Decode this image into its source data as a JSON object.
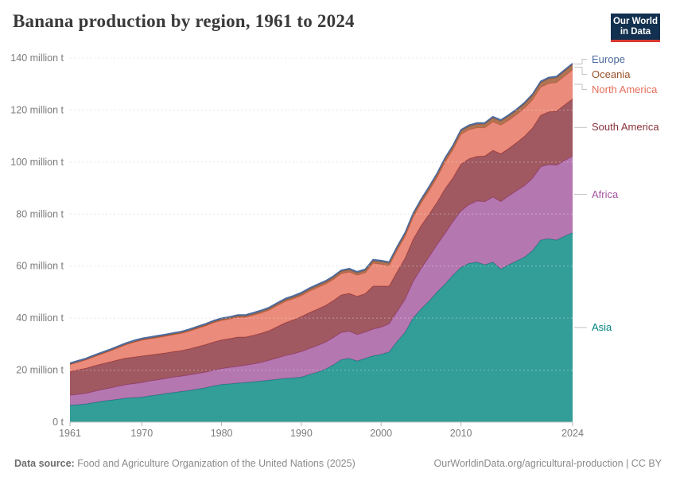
{
  "header": {
    "title": "Banana production by region, 1961 to 2024"
  },
  "logo": {
    "line1": "Our World",
    "line2": "in Data",
    "bg_color": "#12304f",
    "accent_color": "#d93831"
  },
  "footer": {
    "source_label": "Data source:",
    "source_text": "Food and Agriculture Organization of the United Nations (2025)",
    "right_text": "OurWorldinData.org/agricultural-production | CC BY"
  },
  "chart_data": {
    "type": "area",
    "stacked": true,
    "title": "Banana production by region, 1961 to 2024",
    "unit": "million t",
    "x_start": 1961,
    "x_end": 2024,
    "x_ticks": [
      1961,
      1970,
      1980,
      1990,
      2000,
      2010,
      2024
    ],
    "ylim": [
      0,
      140
    ],
    "y_ticks": [
      {
        "v": 0,
        "label": "0 t"
      },
      {
        "v": 20,
        "label": "20 million t"
      },
      {
        "v": 40,
        "label": "40 million t"
      },
      {
        "v": 60,
        "label": "60 million t"
      },
      {
        "v": 80,
        "label": "80 million t"
      },
      {
        "v": 100,
        "label": "100 million t"
      },
      {
        "v": 120,
        "label": "120 million t"
      },
      {
        "v": 140,
        "label": "140 million t"
      }
    ],
    "grid": true,
    "legend_position": "right",
    "legend_order_top_to_bottom": [
      "Europe",
      "Oceania",
      "North America",
      "South America",
      "Africa",
      "Asia"
    ],
    "series": [
      {
        "name": "Asia",
        "color": "#00847e",
        "values": [
          6.5,
          6.7,
          7.0,
          7.5,
          8.0,
          8.4,
          8.8,
          9.2,
          9.4,
          9.6,
          10.1,
          10.5,
          11.0,
          11.4,
          11.8,
          12.2,
          12.7,
          13.2,
          13.9,
          14.5,
          14.7,
          15.0,
          15.2,
          15.5,
          15.8,
          16.1,
          16.5,
          16.8,
          17.0,
          17.3,
          18.3,
          19.2,
          20.3,
          22.0,
          24.0,
          24.5,
          23.5,
          24.5,
          25.5,
          26.0,
          27.0,
          31.0,
          34.5,
          40.0,
          43.5,
          46.5,
          50.0,
          53.0,
          56.5,
          59.5,
          61.0,
          61.5,
          60.5,
          61.5,
          58.8,
          60.5,
          62.0,
          63.5,
          66.0,
          70.0,
          70.5,
          70.0,
          71.5,
          72.8
        ]
      },
      {
        "name": "Africa",
        "color": "#a2559c",
        "values": [
          3.8,
          4.0,
          4.1,
          4.3,
          4.5,
          4.7,
          5.0,
          5.2,
          5.4,
          5.6,
          5.7,
          5.8,
          5.8,
          5.9,
          5.9,
          6.0,
          6.0,
          6.0,
          6.1,
          6.1,
          6.3,
          6.5,
          6.7,
          6.9,
          7.2,
          7.7,
          8.2,
          8.8,
          9.3,
          9.8,
          10.0,
          10.2,
          10.4,
          10.5,
          10.5,
          10.4,
          10.2,
          10.1,
          10.3,
          10.5,
          10.8,
          11.5,
          12.7,
          14.0,
          15.5,
          17.0,
          18.2,
          19.5,
          20.6,
          21.7,
          22.6,
          23.5,
          24.3,
          25.0,
          26.0,
          26.5,
          27.0,
          27.5,
          27.8,
          28.2,
          28.5,
          28.8,
          29.1,
          29.5
        ]
      },
      {
        "name": "South America",
        "color": "#883039",
        "values": [
          9.1,
          9.4,
          9.6,
          9.8,
          9.9,
          10.0,
          10.1,
          10.2,
          10.2,
          10.2,
          10.0,
          9.9,
          9.8,
          9.8,
          9.8,
          10.0,
          10.3,
          10.6,
          10.8,
          11.0,
          11.1,
          11.2,
          10.8,
          11.0,
          11.2,
          11.4,
          12.0,
          12.6,
          13.0,
          13.5,
          13.8,
          14.0,
          14.1,
          14.2,
          14.4,
          14.6,
          14.7,
          14.8,
          16.5,
          15.8,
          14.5,
          15.3,
          15.8,
          16.2,
          16.5,
          16.4,
          16.3,
          17.2,
          16.8,
          18.0,
          17.6,
          17.2,
          17.5,
          18.0,
          18.4,
          18.2,
          18.5,
          19.0,
          19.4,
          19.8,
          20.3,
          20.8,
          21.4,
          22.0
        ]
      },
      {
        "name": "North America",
        "color": "#e56e5a",
        "values": [
          2.7,
          2.9,
          3.2,
          3.5,
          3.8,
          4.2,
          4.6,
          5.1,
          5.7,
          6.1,
          6.2,
          6.3,
          6.4,
          6.5,
          6.6,
          6.8,
          7.0,
          7.2,
          7.4,
          7.5,
          7.5,
          7.6,
          7.6,
          7.7,
          7.8,
          7.9,
          8.1,
          8.2,
          8.1,
          8.0,
          8.2,
          8.3,
          8.2,
          8.1,
          8.2,
          8.2,
          8.1,
          8.0,
          8.8,
          8.4,
          7.8,
          8.2,
          8.3,
          8.5,
          8.6,
          9.0,
          9.5,
          10.2,
          10.8,
          11.5,
          11.2,
          11.0,
          10.9,
          11.0,
          11.0,
          10.9,
          10.8,
          10.8,
          10.8,
          10.8,
          10.9,
          11.0,
          11.1,
          11.2
        ]
      },
      {
        "name": "Oceania",
        "color": "#9a5129",
        "values": [
          0.2,
          0.21,
          0.22,
          0.23,
          0.24,
          0.25,
          0.26,
          0.27,
          0.28,
          0.29,
          0.31,
          0.32,
          0.34,
          0.35,
          0.37,
          0.38,
          0.4,
          0.42,
          0.43,
          0.45,
          0.48,
          0.5,
          0.53,
          0.55,
          0.58,
          0.61,
          0.64,
          0.68,
          0.71,
          0.75,
          0.78,
          0.8,
          0.83,
          0.85,
          0.88,
          0.9,
          0.92,
          0.95,
          0.97,
          1.0,
          1.03,
          1.06,
          1.09,
          1.12,
          1.15,
          1.18,
          1.21,
          1.24,
          1.27,
          1.3,
          1.35,
          1.4,
          1.45,
          1.5,
          1.55,
          1.6,
          1.65,
          1.7,
          1.75,
          1.8,
          1.84,
          1.88,
          1.91,
          1.95
        ]
      },
      {
        "name": "Europe",
        "color": "#4c6a9c",
        "values": [
          0.4,
          0.41,
          0.41,
          0.42,
          0.42,
          0.43,
          0.43,
          0.44,
          0.44,
          0.44,
          0.44,
          0.43,
          0.43,
          0.42,
          0.42,
          0.42,
          0.42,
          0.42,
          0.42,
          0.42,
          0.43,
          0.43,
          0.44,
          0.45,
          0.46,
          0.46,
          0.47,
          0.47,
          0.48,
          0.48,
          0.47,
          0.47,
          0.46,
          0.46,
          0.45,
          0.45,
          0.45,
          0.45,
          0.45,
          0.45,
          0.45,
          0.44,
          0.44,
          0.44,
          0.44,
          0.44,
          0.44,
          0.44,
          0.44,
          0.44,
          0.45,
          0.45,
          0.46,
          0.46,
          0.47,
          0.47,
          0.47,
          0.48,
          0.48,
          0.48,
          0.49,
          0.49,
          0.5,
          0.5
        ]
      }
    ]
  }
}
